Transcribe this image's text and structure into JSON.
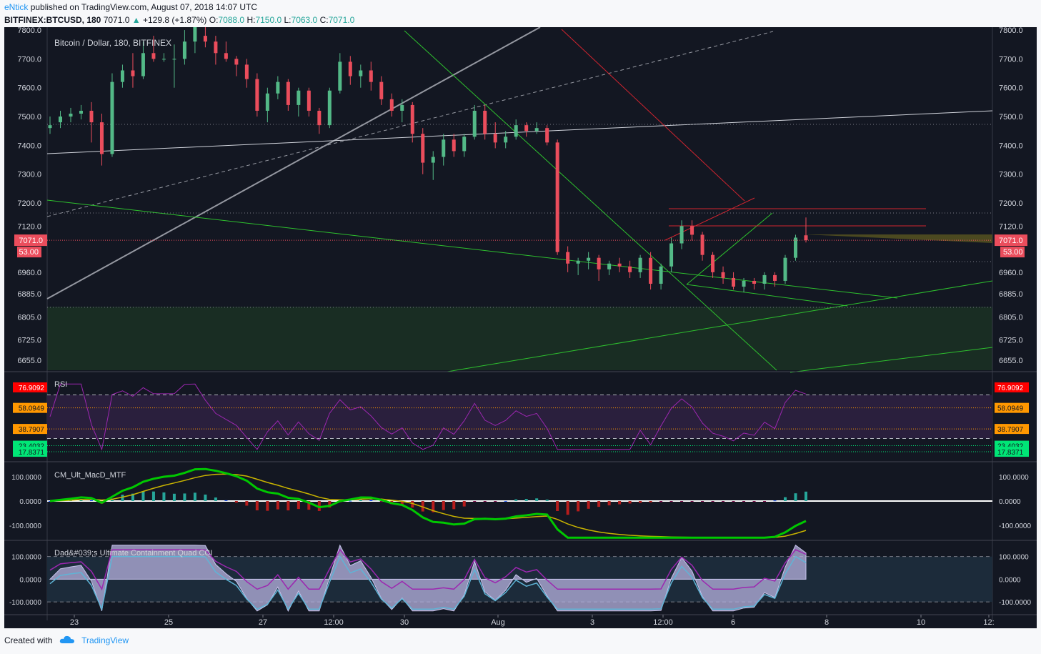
{
  "header": {
    "author": "eNtick",
    "published_text": "published on TradingView.com, August 07, 2018 14:07 UTC",
    "symbol": "BITFINEX:BTCUSD, 180",
    "last": "7071.0",
    "change": "+129.8 (+1.87%)",
    "open_label": "O:",
    "open": "7088.0",
    "high_label": "H:",
    "high": "7150.0",
    "low_label": "L:",
    "low": "7063.0",
    "close_label": "C:",
    "close": "7071.0",
    "up_arrow_icon": "triangle-up-icon"
  },
  "footer": {
    "created_with": "Created with",
    "brand": "TradingView",
    "logo_icon": "cloud-icon"
  },
  "colors": {
    "background": "#131722",
    "up": "#26a69a",
    "up_candle": "#53b987",
    "down_candle": "#eb4d5c",
    "rsi": "#9c27b0",
    "grid": "#2a2e39"
  },
  "chart_data": [
    {
      "type": "candlestick",
      "title": "Bitcoin / Dollar, 180, BITFINEX",
      "y_ticks": [
        "7800.0",
        "7700.0",
        "7600.0",
        "7500.0",
        "7400.0",
        "7300.0",
        "7200.0",
        "7120.0",
        "6960.0",
        "6885.0",
        "6805.0",
        "6725.0",
        "6655.0"
      ],
      "x_ticks": [
        "23",
        "25",
        "27",
        "12:00",
        "30",
        "Aug",
        "3",
        "12:00",
        "6",
        "8",
        "10",
        "12:"
      ],
      "ylim": [
        6620,
        7810
      ],
      "last_price_label": "7071.0",
      "countdown_label": "53.00",
      "ohlc": [
        [
          7460,
          7500,
          7440,
          7470
        ],
        [
          7480,
          7520,
          7460,
          7500
        ],
        [
          7500,
          7530,
          7480,
          7510
        ],
        [
          7510,
          7540,
          7490,
          7520
        ],
        [
          7520,
          7550,
          7410,
          7480
        ],
        [
          7480,
          7510,
          7330,
          7370
        ],
        [
          7370,
          7650,
          7360,
          7620
        ],
        [
          7620,
          7680,
          7600,
          7660
        ],
        [
          7660,
          7720,
          7600,
          7640
        ],
        [
          7640,
          7760,
          7630,
          7720
        ],
        [
          7720,
          7780,
          7690,
          7700
        ],
        [
          7700,
          7720,
          7690,
          7700
        ],
        [
          7700,
          7750,
          7600,
          7700
        ],
        [
          7700,
          7800,
          7680,
          7760
        ],
        [
          7760,
          7830,
          7720,
          7810
        ],
        [
          7780,
          7810,
          7740,
          7760
        ],
        [
          7760,
          7780,
          7680,
          7720
        ],
        [
          7720,
          7760,
          7690,
          7700
        ],
        [
          7700,
          7710,
          7640,
          7680
        ],
        [
          7680,
          7700,
          7600,
          7630
        ],
        [
          7630,
          7650,
          7500,
          7520
        ],
        [
          7520,
          7600,
          7480,
          7580
        ],
        [
          7580,
          7640,
          7560,
          7620
        ],
        [
          7620,
          7630,
          7520,
          7540
        ],
        [
          7540,
          7600,
          7500,
          7590
        ],
        [
          7590,
          7600,
          7500,
          7520
        ],
        [
          7520,
          7530,
          7440,
          7470
        ],
        [
          7470,
          7600,
          7460,
          7590
        ],
        [
          7590,
          7720,
          7580,
          7690
        ],
        [
          7690,
          7710,
          7610,
          7640
        ],
        [
          7640,
          7680,
          7600,
          7660
        ],
        [
          7660,
          7690,
          7590,
          7620
        ],
        [
          7620,
          7640,
          7540,
          7560
        ],
        [
          7560,
          7580,
          7500,
          7520
        ],
        [
          7520,
          7560,
          7480,
          7540
        ],
        [
          7540,
          7550,
          7410,
          7440
        ],
        [
          7440,
          7460,
          7300,
          7340
        ],
        [
          7340,
          7380,
          7280,
          7360
        ],
        [
          7360,
          7440,
          7330,
          7420
        ],
        [
          7420,
          7440,
          7360,
          7380
        ],
        [
          7380,
          7440,
          7360,
          7430
        ],
        [
          7430,
          7540,
          7420,
          7520
        ],
        [
          7520,
          7540,
          7420,
          7440
        ],
        [
          7440,
          7480,
          7390,
          7410
        ],
        [
          7410,
          7450,
          7390,
          7430
        ],
        [
          7430,
          7490,
          7420,
          7470
        ],
        [
          7470,
          7480,
          7430,
          7450
        ],
        [
          7450,
          7480,
          7440,
          7460
        ],
        [
          7460,
          7470,
          7400,
          7410
        ],
        [
          7410,
          7420,
          7020,
          7030
        ],
        [
          7030,
          7050,
          6960,
          6990
        ],
        [
          6990,
          7010,
          6950,
          7000
        ],
        [
          7000,
          7030,
          6970,
          7010
        ],
        [
          7010,
          7020,
          6930,
          6970
        ],
        [
          6970,
          7000,
          6950,
          6990
        ],
        [
          6990,
          7010,
          6960,
          6980
        ],
        [
          6980,
          7000,
          6940,
          6960
        ],
        [
          6960,
          7020,
          6940,
          7010
        ],
        [
          7010,
          7030,
          6900,
          6920
        ],
        [
          6920,
          6990,
          6900,
          6980
        ],
        [
          6980,
          7080,
          6960,
          7060
        ],
        [
          7060,
          7140,
          7040,
          7120
        ],
        [
          7120,
          7140,
          7070,
          7090
        ],
        [
          7090,
          7100,
          7000,
          7020
        ],
        [
          7020,
          7030,
          6940,
          6960
        ],
        [
          6960,
          6980,
          6920,
          6940
        ],
        [
          6940,
          6960,
          6900,
          6910
        ],
        [
          6910,
          6940,
          6890,
          6930
        ],
        [
          6930,
          6940,
          6900,
          6920
        ],
        [
          6920,
          6960,
          6900,
          6950
        ],
        [
          6950,
          6960,
          6910,
          6930
        ],
        [
          6930,
          7020,
          6920,
          7010
        ],
        [
          7010,
          7090,
          7000,
          7080
        ],
        [
          7088,
          7150,
          7063,
          7071
        ]
      ],
      "colors": {
        "up": "#53b987",
        "down": "#eb4d5c"
      }
    },
    {
      "type": "line",
      "title": "RSI",
      "y_ticks": [
        "76.9092",
        "58.0949",
        "38.7907",
        "23.4032",
        "17.8371"
      ],
      "ylim": [
        10,
        90
      ]
    },
    {
      "type": "histogram+line",
      "title": "CM_Ult_MacD_MTF",
      "y_ticks": [
        "100.0000",
        "0.0000",
        "-100.0000"
      ],
      "ylim": [
        -155,
        155
      ]
    },
    {
      "type": "area",
      "title": "Dad&#039;s Ultimate Containment Quad CCI",
      "y_ticks": [
        "100.0000",
        "0.0000",
        "-100.0000"
      ],
      "ylim": [
        -150,
        165
      ]
    }
  ]
}
